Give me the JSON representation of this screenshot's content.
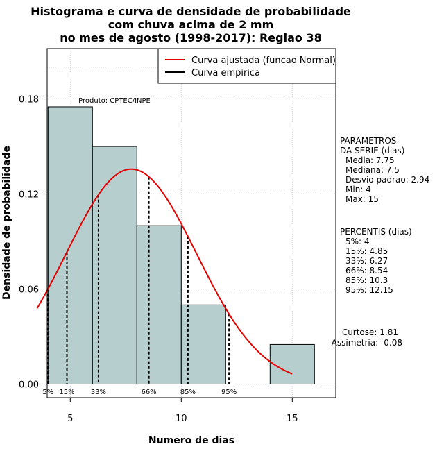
{
  "chart_data": {
    "type": "bar",
    "title_lines": [
      "Histograma e curva de densidade de probabilidade",
      "com chuva acima de 2 mm",
      "no mes de agosto (1998-2017): Regiao 38"
    ],
    "xlabel": "Numero de dias",
    "ylabel": "Densidade de probabilidade",
    "xlim": [
      3.5,
      16.5
    ],
    "ylim": [
      0,
      0.21
    ],
    "x_ticks": [
      5,
      10,
      15
    ],
    "y_ticks": [
      "0.00",
      "0.06",
      "0.12",
      "0.18"
    ],
    "bins": [
      {
        "from": 4,
        "to": 6,
        "density": 0.175
      },
      {
        "from": 6,
        "to": 8,
        "density": 0.15
      },
      {
        "from": 8,
        "to": 10,
        "density": 0.1
      },
      {
        "from": 10,
        "to": 12,
        "density": 0.05
      },
      {
        "from": 12,
        "to": 14,
        "density": 0.0
      },
      {
        "from": 14,
        "to": 16,
        "density": 0.025
      }
    ],
    "bar_color": "#b6cecd",
    "normal_curve": {
      "mean": 7.75,
      "sd": 2.94,
      "from": 3.5,
      "to": 15,
      "color": "#e60000"
    },
    "percentile_lines": [
      {
        "label": "5%",
        "x": 4
      },
      {
        "label": "15%",
        "x": 4.85
      },
      {
        "label": "33%",
        "x": 6.27
      },
      {
        "label": "66%",
        "x": 8.54
      },
      {
        "label": "85%",
        "x": 10.3
      },
      {
        "label": "95%",
        "x": 12.15
      }
    ],
    "legend": [
      {
        "label": "Curva ajustada (funcao Normal)",
        "color": "#e60000"
      },
      {
        "label": "Curva empirica",
        "color": "#000000"
      }
    ],
    "product_label": "Produto: CPTEC/INPE",
    "params": {
      "heading": [
        "PARAMETROS",
        "DA SERIE (dias)"
      ],
      "lines": [
        "Media: 7.75",
        "Mediana: 7.5",
        "Desvio padrao: 2.94",
        "Min: 4",
        "Max: 15"
      ]
    },
    "percentis": {
      "heading": "PERCENTIS (dias)",
      "lines": [
        "5%: 4",
        "15%: 4.85",
        "33%: 6.27",
        "66%: 8.54",
        "85%: 10.3",
        "95%: 12.15"
      ]
    },
    "shape": {
      "lines": [
        "Curtose: 1.81",
        "Assimetria: -0.08"
      ]
    }
  }
}
